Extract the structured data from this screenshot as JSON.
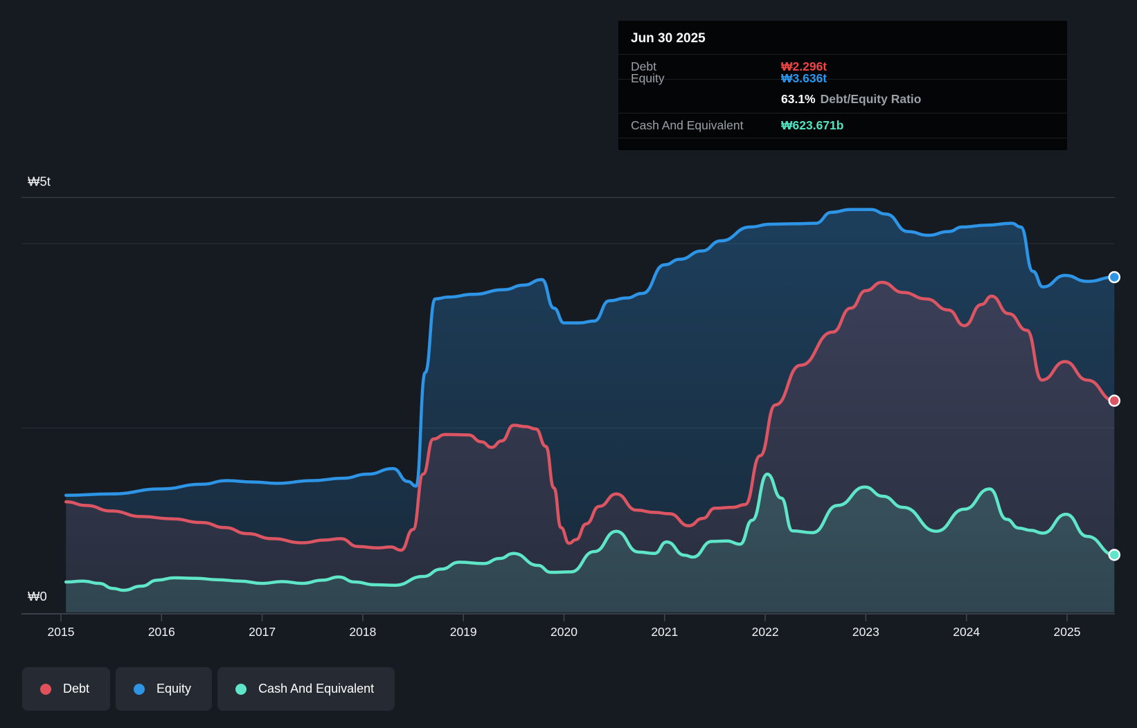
{
  "tooltip": {
    "date": "Jun 30 2025",
    "debt_label": "Debt",
    "debt_value": "₩2.296t",
    "equity_label": "Equity",
    "equity_value": "₩3.636t",
    "ratio_value": "63.1%",
    "ratio_label": "Debt/Equity Ratio",
    "cash_label": "Cash And Equivalent",
    "cash_value": "₩623.671b"
  },
  "legend": {
    "items": [
      {
        "id": "debt",
        "label": "Debt",
        "color": "#e0515c"
      },
      {
        "id": "equity",
        "label": "Equity",
        "color": "#2d94e6"
      },
      {
        "id": "cash",
        "label": "Cash And Equivalent",
        "color": "#5fe6c8"
      }
    ]
  },
  "colors": {
    "background": "#161b22",
    "debt_line": "#dc5562",
    "equity_line": "#2d94e6",
    "cash_line": "#5fe6c8",
    "grid_strong": "#363d45",
    "grid_faint": "#262c33",
    "axis_line": "#474e57",
    "tick": "#3e454e",
    "axis_text": "#f2f4f6"
  },
  "chart_data": {
    "type": "area",
    "units": "₩ trillions (KRW)",
    "x_domain": [
      2015.05,
      2025.47
    ],
    "y_domain": [
      0,
      4.5
    ],
    "y_ticks": [
      {
        "label": "₩5t",
        "v": 4.5
      },
      {
        "label": "₩0",
        "v": 0
      }
    ],
    "y_gridline_values": [
      4.5,
      4.0,
      2.0,
      0
    ],
    "x_tick_years": [
      "2015",
      "2016",
      "2017",
      "2018",
      "2019",
      "2020",
      "2021",
      "2022",
      "2023",
      "2024",
      "2025"
    ],
    "legend_position": "bottom-left",
    "series": [
      {
        "name": "Equity",
        "id": "equity",
        "color": "#2d94e6",
        "fill_opacity_top": 0.3,
        "fill_opacity_bottom": 0.12,
        "last_value_label": "₩3.636t",
        "points": [
          [
            2015.05,
            1.27
          ],
          [
            2015.5,
            1.285
          ],
          [
            2016.0,
            1.34
          ],
          [
            2016.4,
            1.39
          ],
          [
            2016.65,
            1.43
          ],
          [
            2016.9,
            1.415
          ],
          [
            2017.15,
            1.4
          ],
          [
            2017.5,
            1.43
          ],
          [
            2017.8,
            1.455
          ],
          [
            2018.05,
            1.5
          ],
          [
            2018.3,
            1.56
          ],
          [
            2018.45,
            1.42
          ],
          [
            2018.53,
            1.37
          ],
          [
            2018.62,
            2.6
          ],
          [
            2018.72,
            3.4
          ],
          [
            2018.85,
            3.42
          ],
          [
            2019.1,
            3.45
          ],
          [
            2019.4,
            3.5
          ],
          [
            2019.6,
            3.55
          ],
          [
            2019.78,
            3.61
          ],
          [
            2019.9,
            3.3
          ],
          [
            2020.0,
            3.14
          ],
          [
            2020.15,
            3.14
          ],
          [
            2020.3,
            3.16
          ],
          [
            2020.45,
            3.38
          ],
          [
            2020.62,
            3.41
          ],
          [
            2020.78,
            3.46
          ],
          [
            2021.0,
            3.77
          ],
          [
            2021.15,
            3.83
          ],
          [
            2021.37,
            3.92
          ],
          [
            2021.56,
            4.03
          ],
          [
            2021.85,
            4.18
          ],
          [
            2022.05,
            4.21
          ],
          [
            2022.3,
            4.215
          ],
          [
            2022.5,
            4.22
          ],
          [
            2022.66,
            4.34
          ],
          [
            2022.85,
            4.37
          ],
          [
            2023.05,
            4.37
          ],
          [
            2023.2,
            4.32
          ],
          [
            2023.42,
            4.13
          ],
          [
            2023.62,
            4.09
          ],
          [
            2023.82,
            4.13
          ],
          [
            2023.96,
            4.18
          ],
          [
            2024.2,
            4.2
          ],
          [
            2024.45,
            4.22
          ],
          [
            2024.54,
            4.18
          ],
          [
            2024.66,
            3.7
          ],
          [
            2024.76,
            3.53
          ],
          [
            2024.98,
            3.655
          ],
          [
            2025.2,
            3.59
          ],
          [
            2025.47,
            3.636
          ]
        ]
      },
      {
        "name": "Debt",
        "id": "debt",
        "color": "#dc5562",
        "fill_opacity_top": 0.18,
        "fill_opacity_bottom": 0.08,
        "last_value_label": "₩2.296t",
        "points": [
          [
            2015.05,
            1.2
          ],
          [
            2015.25,
            1.16
          ],
          [
            2015.5,
            1.1
          ],
          [
            2015.8,
            1.04
          ],
          [
            2016.1,
            1.015
          ],
          [
            2016.4,
            0.975
          ],
          [
            2016.63,
            0.92
          ],
          [
            2016.85,
            0.855
          ],
          [
            2017.1,
            0.8
          ],
          [
            2017.4,
            0.755
          ],
          [
            2017.62,
            0.785
          ],
          [
            2017.78,
            0.8
          ],
          [
            2017.95,
            0.715
          ],
          [
            2018.15,
            0.7
          ],
          [
            2018.28,
            0.71
          ],
          [
            2018.38,
            0.675
          ],
          [
            2018.5,
            0.9
          ],
          [
            2018.6,
            1.5
          ],
          [
            2018.7,
            1.88
          ],
          [
            2018.82,
            1.93
          ],
          [
            2019.05,
            1.925
          ],
          [
            2019.18,
            1.85
          ],
          [
            2019.28,
            1.79
          ],
          [
            2019.38,
            1.86
          ],
          [
            2019.5,
            2.03
          ],
          [
            2019.62,
            2.015
          ],
          [
            2019.72,
            1.99
          ],
          [
            2019.82,
            1.8
          ],
          [
            2019.9,
            1.35
          ],
          [
            2019.97,
            0.92
          ],
          [
            2020.05,
            0.75
          ],
          [
            2020.12,
            0.79
          ],
          [
            2020.22,
            0.96
          ],
          [
            2020.35,
            1.15
          ],
          [
            2020.52,
            1.285
          ],
          [
            2020.72,
            1.11
          ],
          [
            2020.9,
            1.085
          ],
          [
            2021.05,
            1.07
          ],
          [
            2021.24,
            0.94
          ],
          [
            2021.38,
            1.02
          ],
          [
            2021.5,
            1.13
          ],
          [
            2021.68,
            1.14
          ],
          [
            2021.8,
            1.17
          ],
          [
            2021.95,
            1.7
          ],
          [
            2022.1,
            2.25
          ],
          [
            2022.35,
            2.68
          ],
          [
            2022.67,
            3.04
          ],
          [
            2022.85,
            3.3
          ],
          [
            2023.0,
            3.49
          ],
          [
            2023.16,
            3.58
          ],
          [
            2023.37,
            3.47
          ],
          [
            2023.6,
            3.4
          ],
          [
            2023.82,
            3.28
          ],
          [
            2023.98,
            3.11
          ],
          [
            2024.15,
            3.34
          ],
          [
            2024.25,
            3.43
          ],
          [
            2024.42,
            3.24
          ],
          [
            2024.6,
            3.06
          ],
          [
            2024.75,
            2.52
          ],
          [
            2024.98,
            2.72
          ],
          [
            2025.2,
            2.52
          ],
          [
            2025.47,
            2.296
          ]
        ]
      },
      {
        "name": "Cash And Equivalent",
        "id": "cash",
        "color": "#5fe6c8",
        "fill_opacity_top": 0.24,
        "fill_opacity_bottom": 0.13,
        "last_value_label": "₩623.671b",
        "points": [
          [
            2015.05,
            0.33
          ],
          [
            2015.22,
            0.34
          ],
          [
            2015.38,
            0.315
          ],
          [
            2015.52,
            0.26
          ],
          [
            2015.62,
            0.24
          ],
          [
            2015.8,
            0.285
          ],
          [
            2015.96,
            0.35
          ],
          [
            2016.12,
            0.375
          ],
          [
            2016.35,
            0.37
          ],
          [
            2016.55,
            0.355
          ],
          [
            2016.78,
            0.34
          ],
          [
            2017.0,
            0.315
          ],
          [
            2017.2,
            0.335
          ],
          [
            2017.4,
            0.315
          ],
          [
            2017.6,
            0.35
          ],
          [
            2017.76,
            0.385
          ],
          [
            2017.92,
            0.33
          ],
          [
            2018.12,
            0.3
          ],
          [
            2018.32,
            0.295
          ],
          [
            2018.6,
            0.39
          ],
          [
            2018.78,
            0.47
          ],
          [
            2018.96,
            0.545
          ],
          [
            2019.2,
            0.53
          ],
          [
            2019.36,
            0.585
          ],
          [
            2019.5,
            0.64
          ],
          [
            2019.74,
            0.51
          ],
          [
            2019.87,
            0.435
          ],
          [
            2020.07,
            0.44
          ],
          [
            2020.3,
            0.66
          ],
          [
            2020.52,
            0.88
          ],
          [
            2020.74,
            0.655
          ],
          [
            2020.9,
            0.64
          ],
          [
            2021.02,
            0.765
          ],
          [
            2021.2,
            0.62
          ],
          [
            2021.28,
            0.6
          ],
          [
            2021.47,
            0.77
          ],
          [
            2021.62,
            0.775
          ],
          [
            2021.75,
            0.74
          ],
          [
            2021.87,
            1.0
          ],
          [
            2022.02,
            1.5
          ],
          [
            2022.16,
            1.24
          ],
          [
            2022.27,
            0.885
          ],
          [
            2022.47,
            0.865
          ],
          [
            2022.72,
            1.16
          ],
          [
            2022.99,
            1.36
          ],
          [
            2023.17,
            1.26
          ],
          [
            2023.37,
            1.14
          ],
          [
            2023.7,
            0.88
          ],
          [
            2023.98,
            1.12
          ],
          [
            2024.23,
            1.34
          ],
          [
            2024.4,
            1.01
          ],
          [
            2024.52,
            0.915
          ],
          [
            2024.64,
            0.89
          ],
          [
            2024.76,
            0.86
          ],
          [
            2024.99,
            1.065
          ],
          [
            2025.2,
            0.825
          ],
          [
            2025.47,
            0.624
          ]
        ]
      }
    ]
  }
}
